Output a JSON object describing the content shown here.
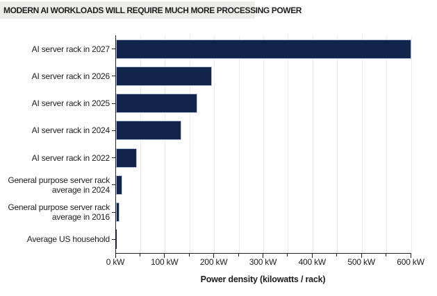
{
  "title": "MODERN AI WORKLOADS WILL REQUIRE MUCH MORE PROCESSING POWER",
  "chart_data": {
    "type": "bar",
    "orientation": "horizontal",
    "title": "MODERN AI WORKLOADS WILL REQUIRE MUCH MORE PROCESSING POWER",
    "xlabel": "Power density (kilowatts / rack)",
    "ylabel": "",
    "unit": "kW",
    "xlim": [
      0,
      600
    ],
    "grid": "vertical gridlines every 50 kW",
    "legend": "none",
    "categories": [
      {
        "lines": [
          "AI server rack in 2027"
        ]
      },
      {
        "lines": [
          "AI server rack in 2026"
        ]
      },
      {
        "lines": [
          "AI server rack in 2025"
        ]
      },
      {
        "lines": [
          "AI server rack in 2024"
        ]
      },
      {
        "lines": [
          "AI server rack in 2022"
        ]
      },
      {
        "lines": [
          "General purpose server rack",
          "average in 2024"
        ]
      },
      {
        "lines": [
          "General purpose server rack",
          "average in 2016"
        ]
      },
      {
        "lines": [
          "Average US household"
        ]
      }
    ],
    "values": [
      600,
      195,
      165,
      132,
      42,
      13,
      7,
      1.2
    ],
    "x_ticks": [
      {
        "value": 0,
        "label": "0 kW"
      },
      {
        "value": 100,
        "label": "100 kW"
      },
      {
        "value": 200,
        "label": "200 kW"
      },
      {
        "value": 300,
        "label": "300 kW"
      },
      {
        "value": 400,
        "label": "400 kW"
      },
      {
        "value": 500,
        "label": "500 kW"
      },
      {
        "value": 600,
        "label": "600 kW"
      }
    ],
    "minor_tick_step": 50
  },
  "colors": {
    "bar_fill": "#11254C",
    "bar_stroke": "#B9C5D8",
    "gridline": "#ECECEC",
    "axis": "#1F1F1F",
    "text": "#1C1C1C",
    "title_background": "#EDEDEB"
  }
}
